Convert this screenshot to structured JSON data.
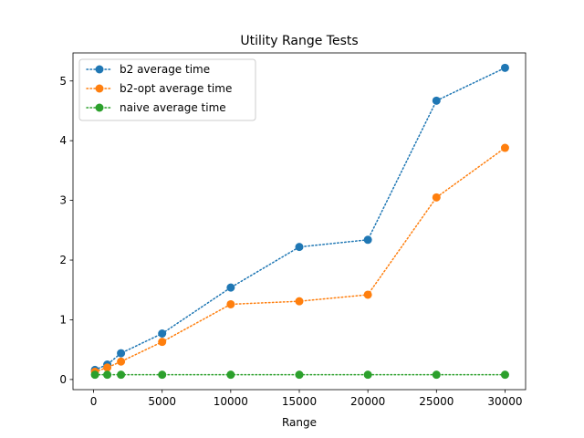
{
  "chart_data": {
    "type": "line",
    "title": "Utility Range Tests",
    "xlabel": "Range",
    "ylabel": "",
    "xlim": [
      -1500,
      31500
    ],
    "ylim": [
      -0.17,
      5.47
    ],
    "xticks": [
      0,
      5000,
      10000,
      15000,
      20000,
      25000,
      30000
    ],
    "yticks": [
      0,
      1,
      2,
      3,
      4,
      5
    ],
    "x": [
      100,
      1000,
      2000,
      5000,
      10000,
      15000,
      20000,
      25000,
      30000
    ],
    "grid": false,
    "legend_position": "upper left",
    "line_style": "dotted",
    "marker": "circle",
    "series": [
      {
        "name": "b2 average time",
        "color": "#1f77b4",
        "values": [
          0.16,
          0.25,
          0.44,
          0.77,
          1.54,
          2.22,
          2.34,
          4.67,
          5.22
        ]
      },
      {
        "name": "b2-opt average time",
        "color": "#ff7f0e",
        "values": [
          0.13,
          0.2,
          0.3,
          0.63,
          1.26,
          1.31,
          1.42,
          3.05,
          3.88
        ]
      },
      {
        "name": "naive average time",
        "color": "#2ca02c",
        "values": [
          0.08,
          0.08,
          0.08,
          0.08,
          0.08,
          0.08,
          0.08,
          0.08,
          0.08
        ]
      }
    ]
  }
}
